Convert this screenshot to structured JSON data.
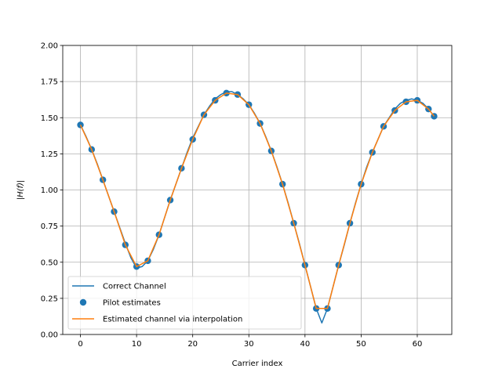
{
  "chart_data": {
    "type": "line",
    "xlabel": "Carrier index",
    "ylabel": "|H(f)|",
    "xlim": [
      -3.15,
      66.15
    ],
    "ylim": [
      0,
      2.0
    ],
    "xticks": [
      0,
      10,
      20,
      30,
      40,
      50,
      60
    ],
    "yticks": [
      0.0,
      0.25,
      0.5,
      0.75,
      1.0,
      1.25,
      1.5,
      1.75,
      2.0
    ],
    "xtick_labels": [
      "0",
      "10",
      "20",
      "30",
      "40",
      "50",
      "60"
    ],
    "ytick_labels": [
      "0.00",
      "0.25",
      "0.50",
      "0.75",
      "1.00",
      "1.25",
      "1.50",
      "1.75",
      "2.00"
    ],
    "grid": true,
    "legend_position": "lower-left",
    "series": [
      {
        "name": "Correct Channel",
        "kind": "line",
        "color": "#1f77b4",
        "x": [
          0,
          1,
          2,
          3,
          4,
          5,
          6,
          7,
          8,
          9,
          10,
          11,
          12,
          13,
          14,
          15,
          16,
          17,
          18,
          19,
          20,
          21,
          22,
          23,
          24,
          25,
          26,
          27,
          28,
          29,
          30,
          31,
          32,
          33,
          34,
          35,
          36,
          37,
          38,
          39,
          40,
          41,
          42,
          43,
          44,
          45,
          46,
          47,
          48,
          49,
          50,
          51,
          52,
          53,
          54,
          55,
          56,
          57,
          58,
          59,
          60,
          61,
          62,
          63
        ],
        "y": [
          1.45,
          1.37,
          1.28,
          1.18,
          1.07,
          0.96,
          0.85,
          0.74,
          0.63,
          0.53,
          0.46,
          0.47,
          0.51,
          0.59,
          0.69,
          0.81,
          0.93,
          1.04,
          1.15,
          1.26,
          1.36,
          1.44,
          1.52,
          1.58,
          1.63,
          1.66,
          1.68,
          1.68,
          1.66,
          1.63,
          1.59,
          1.53,
          1.46,
          1.37,
          1.27,
          1.16,
          1.04,
          0.91,
          0.77,
          0.63,
          0.48,
          0.33,
          0.18,
          0.08,
          0.18,
          0.33,
          0.48,
          0.62,
          0.77,
          0.91,
          1.04,
          1.16,
          1.26,
          1.35,
          1.44,
          1.5,
          1.56,
          1.6,
          1.62,
          1.63,
          1.62,
          1.6,
          1.56,
          1.51
        ]
      },
      {
        "name": "Pilot estimates",
        "kind": "scatter",
        "color": "#1f77b4",
        "x": [
          0,
          2,
          4,
          6,
          8,
          10,
          12,
          14,
          16,
          18,
          20,
          22,
          24,
          26,
          28,
          30,
          32,
          34,
          36,
          38,
          40,
          42,
          44,
          46,
          48,
          50,
          52,
          54,
          56,
          58,
          60,
          62,
          63
        ],
        "y": [
          1.45,
          1.28,
          1.07,
          0.85,
          0.62,
          0.47,
          0.51,
          0.69,
          0.93,
          1.15,
          1.35,
          1.52,
          1.62,
          1.67,
          1.66,
          1.59,
          1.46,
          1.27,
          1.04,
          0.77,
          0.48,
          0.18,
          0.18,
          0.48,
          0.77,
          1.04,
          1.26,
          1.44,
          1.55,
          1.61,
          1.62,
          1.56,
          1.51
        ]
      },
      {
        "name": "Estimated channel via interpolation",
        "kind": "line",
        "color": "#ff7f0e",
        "x": [
          0,
          2,
          4,
          6,
          8,
          10,
          12,
          14,
          16,
          18,
          20,
          22,
          24,
          26,
          28,
          30,
          32,
          34,
          36,
          38,
          40,
          42,
          44,
          46,
          48,
          50,
          52,
          54,
          56,
          58,
          60,
          62,
          63
        ],
        "y": [
          1.45,
          1.28,
          1.07,
          0.85,
          0.62,
          0.47,
          0.51,
          0.69,
          0.93,
          1.15,
          1.35,
          1.52,
          1.62,
          1.67,
          1.66,
          1.59,
          1.46,
          1.27,
          1.04,
          0.77,
          0.48,
          0.18,
          0.18,
          0.48,
          0.77,
          1.04,
          1.26,
          1.44,
          1.55,
          1.61,
          1.62,
          1.56,
          1.51
        ]
      }
    ]
  }
}
